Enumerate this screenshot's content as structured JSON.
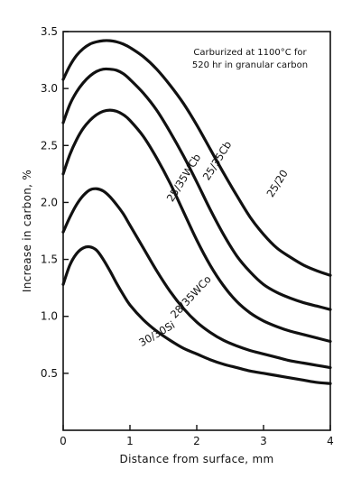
{
  "chart_data": {
    "type": "line",
    "title": "",
    "annotation": [
      "Carburized at 1100°C for",
      "520 hr in granular carbon"
    ],
    "xlabel": "Distance from surface, mm",
    "ylabel": "Increase in carbon, %",
    "xlim": [
      0,
      4
    ],
    "ylim": [
      0,
      3.5
    ],
    "x_ticks": [
      "0",
      "1",
      "2",
      "3",
      "4"
    ],
    "y_ticks": [
      "0.5",
      "1.0",
      "1.5",
      "2.0",
      "2.5",
      "3.0",
      "3.5"
    ],
    "grid": false,
    "legend": "none (curves labeled inline)",
    "line_color": "#111111",
    "series": [
      {
        "name": "25/20",
        "x": [
          0,
          0.1,
          0.2,
          0.3,
          0.4,
          0.5,
          0.6,
          0.7,
          0.8,
          0.9,
          1.0,
          1.2,
          1.4,
          1.6,
          1.8,
          2.0,
          2.2,
          2.4,
          2.6,
          2.8,
          3.0,
          3.2,
          3.4,
          3.6,
          3.8,
          4.0
        ],
        "y": [
          3.08,
          3.2,
          3.29,
          3.35,
          3.39,
          3.41,
          3.42,
          3.42,
          3.41,
          3.39,
          3.36,
          3.28,
          3.17,
          3.03,
          2.87,
          2.68,
          2.47,
          2.26,
          2.06,
          1.87,
          1.72,
          1.6,
          1.52,
          1.45,
          1.4,
          1.36
        ]
      },
      {
        "name": "25/35Cb",
        "x": [
          0,
          0.1,
          0.2,
          0.3,
          0.4,
          0.5,
          0.6,
          0.7,
          0.8,
          0.9,
          1.0,
          1.2,
          1.4,
          1.6,
          1.8,
          2.0,
          2.2,
          2.4,
          2.6,
          2.8,
          3.0,
          3.2,
          3.4,
          3.6,
          3.8,
          4.0
        ],
        "y": [
          2.7,
          2.86,
          2.97,
          3.05,
          3.11,
          3.15,
          3.17,
          3.17,
          3.16,
          3.13,
          3.08,
          2.96,
          2.81,
          2.62,
          2.41,
          2.18,
          1.94,
          1.72,
          1.53,
          1.39,
          1.28,
          1.21,
          1.16,
          1.12,
          1.09,
          1.06
        ]
      },
      {
        "name": "25/35WCb",
        "x": [
          0,
          0.1,
          0.2,
          0.3,
          0.4,
          0.5,
          0.6,
          0.7,
          0.8,
          0.9,
          1.0,
          1.2,
          1.4,
          1.6,
          1.8,
          2.0,
          2.2,
          2.4,
          2.6,
          2.8,
          3.0,
          3.2,
          3.4,
          3.6,
          3.8,
          4.0
        ],
        "y": [
          2.25,
          2.42,
          2.55,
          2.65,
          2.72,
          2.77,
          2.8,
          2.81,
          2.8,
          2.77,
          2.72,
          2.58,
          2.39,
          2.17,
          1.92,
          1.67,
          1.45,
          1.27,
          1.13,
          1.03,
          0.96,
          0.91,
          0.87,
          0.84,
          0.81,
          0.78
        ]
      },
      {
        "name": "28/35WCo",
        "x": [
          0,
          0.1,
          0.2,
          0.3,
          0.4,
          0.5,
          0.6,
          0.7,
          0.8,
          0.9,
          1.0,
          1.2,
          1.4,
          1.6,
          1.8,
          2.0,
          2.2,
          2.4,
          2.6,
          2.8,
          3.0,
          3.2,
          3.4,
          3.6,
          3.8,
          4.0
        ],
        "y": [
          1.74,
          1.87,
          1.98,
          2.06,
          2.11,
          2.12,
          2.1,
          2.05,
          1.98,
          1.9,
          1.8,
          1.6,
          1.4,
          1.22,
          1.07,
          0.95,
          0.86,
          0.79,
          0.74,
          0.7,
          0.67,
          0.64,
          0.61,
          0.59,
          0.57,
          0.55
        ]
      },
      {
        "name": "30/30Si",
        "x": [
          0,
          0.1,
          0.2,
          0.3,
          0.4,
          0.5,
          0.6,
          0.7,
          0.8,
          0.9,
          1.0,
          1.2,
          1.4,
          1.6,
          1.8,
          2.0,
          2.2,
          2.4,
          2.6,
          2.8,
          3.0,
          3.2,
          3.4,
          3.6,
          3.8,
          4.0
        ],
        "y": [
          1.28,
          1.45,
          1.55,
          1.6,
          1.61,
          1.58,
          1.5,
          1.4,
          1.29,
          1.19,
          1.1,
          0.97,
          0.87,
          0.79,
          0.72,
          0.67,
          0.62,
          0.58,
          0.55,
          0.52,
          0.5,
          0.48,
          0.46,
          0.44,
          0.42,
          0.41
        ]
      }
    ],
    "curve_labels": [
      {
        "series": "25/20",
        "text": "25/20",
        "at_x": 3.25,
        "at_y": 2.15,
        "angle": -58
      },
      {
        "series": "25/35Cb",
        "text": "25/35Cb",
        "at_x": 2.35,
        "at_y": 2.35,
        "angle": -58
      },
      {
        "series": "25/35WCb",
        "text": "25/35WCb",
        "at_x": 1.85,
        "at_y": 2.2,
        "angle": -58
      },
      {
        "series": "28/35WCo",
        "text": "28/35WCo",
        "at_x": 1.95,
        "at_y": 1.15,
        "angle": -47
      },
      {
        "series": "30/30Si",
        "text": "30/30Si",
        "at_x": 1.43,
        "at_y": 0.82,
        "angle": -30
      }
    ]
  }
}
